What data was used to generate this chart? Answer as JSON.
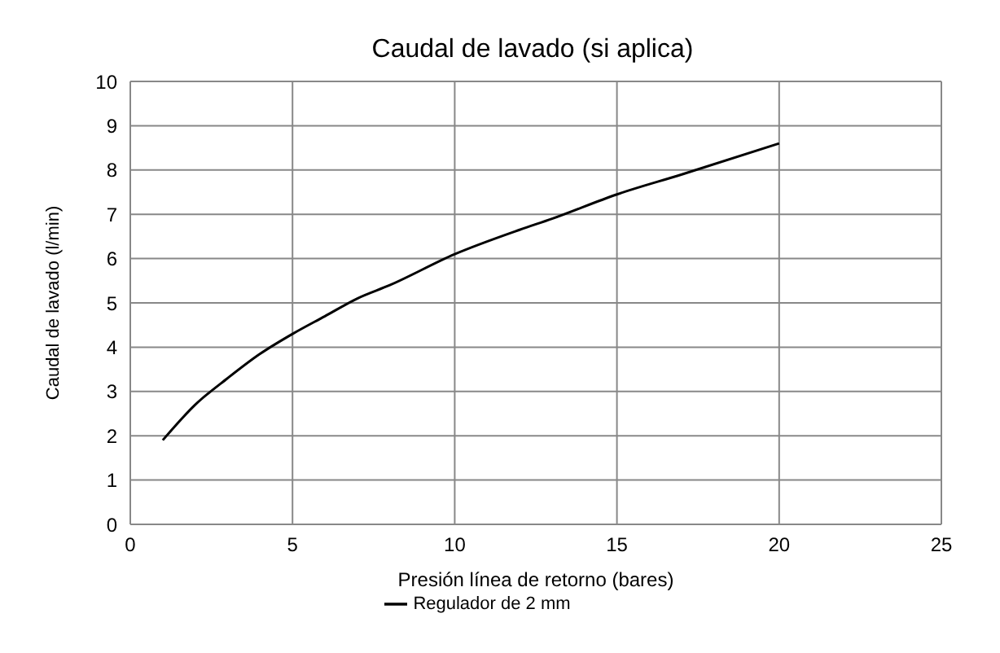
{
  "chart_data": {
    "type": "line",
    "title": "Caudal de lavado (si aplica)",
    "xlabel": "Presión línea de retorno (bares)",
    "ylabel": "Caudal de lavado (l/min)",
    "x": [
      1,
      2,
      3,
      4,
      5,
      6,
      7,
      8,
      10,
      12,
      13,
      15,
      17,
      20
    ],
    "series": [
      {
        "name": "Regulador de 2 mm",
        "color": "#000000",
        "values": [
          1.9,
          2.7,
          3.3,
          3.85,
          4.3,
          4.7,
          5.1,
          5.4,
          6.1,
          6.65,
          6.9,
          7.45,
          7.9,
          8.6
        ]
      }
    ],
    "xlim": [
      0,
      25
    ],
    "xticks": [
      0,
      5,
      10,
      15,
      20,
      25
    ],
    "ylim": [
      0,
      10
    ],
    "yticks": [
      0,
      1,
      2,
      3,
      4,
      5,
      6,
      7,
      8,
      9,
      10
    ],
    "grid": true,
    "legend": "bottom",
    "marker": "none",
    "line_style": "solid"
  }
}
